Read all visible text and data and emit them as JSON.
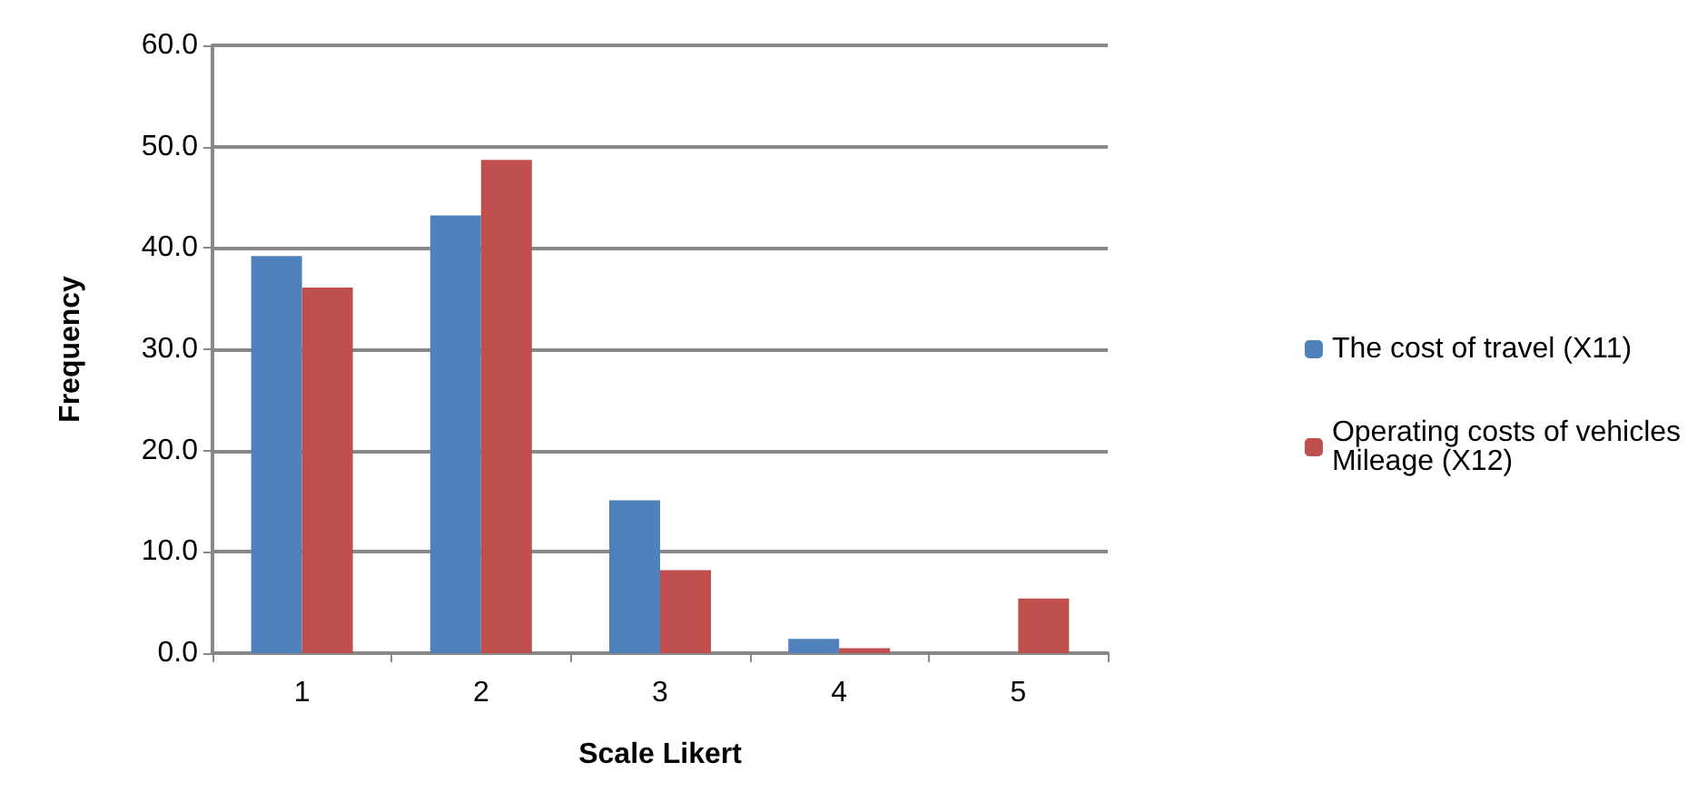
{
  "chart_data": {
    "type": "bar",
    "xlabel": "Scale Likert",
    "ylabel": "Frequency",
    "categories": [
      "1",
      "2",
      "3",
      "4",
      "5"
    ],
    "series": [
      {
        "name": "The cost of travel (X11)",
        "color": "#4f81bd",
        "values": [
          39.2,
          43.2,
          15.1,
          1.4,
          0
        ]
      },
      {
        "name": "Operating costs of vehicles Mileage (X12)",
        "color": "#c0504d",
        "values": [
          36.1,
          48.7,
          8.2,
          0.5,
          5.4
        ]
      }
    ],
    "ylim": [
      0,
      60
    ],
    "yticks": [
      {
        "value": 0,
        "label": "0.0"
      },
      {
        "value": 10,
        "label": "10.0"
      },
      {
        "value": 20,
        "label": "20.0"
      },
      {
        "value": 30,
        "label": "30.0"
      },
      {
        "value": 40,
        "label": "40.0"
      },
      {
        "value": 50,
        "label": "50.0"
      },
      {
        "value": 60,
        "label": "60.0"
      }
    ],
    "grid": "y",
    "legend": "right"
  }
}
